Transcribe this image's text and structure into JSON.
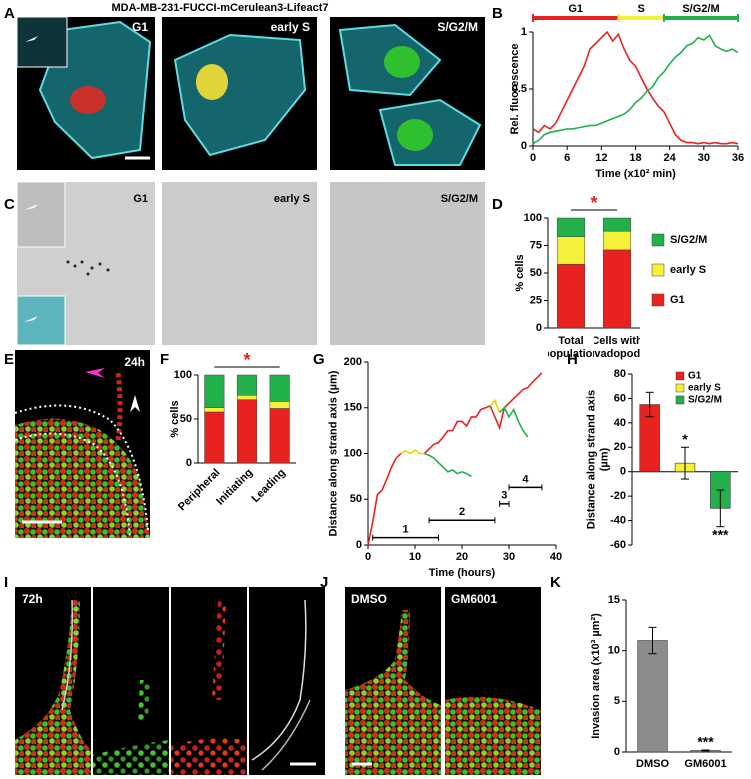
{
  "figure": {
    "A": {
      "letter": "A",
      "title": "MDA-MB-231-FUCCI-mCerulean3-Lifeact7",
      "labels": [
        "G1",
        "early S",
        "S/G2/M"
      ]
    },
    "C": {
      "letter": "C",
      "labels": [
        "G1",
        "early S",
        "S/G2/M"
      ]
    },
    "E": {
      "letter": "E",
      "label": "24h"
    },
    "I": {
      "letter": "I",
      "label": "72h"
    },
    "J": {
      "letter": "J",
      "labels": [
        "DMSO",
        "GM6001"
      ]
    }
  },
  "chart_data": [
    {
      "panel": "B",
      "type": "line",
      "x": [
        0,
        1,
        2,
        3,
        4,
        5,
        6,
        7,
        8,
        9,
        10,
        11,
        12,
        13,
        14,
        15,
        16,
        17,
        18,
        19,
        20,
        21,
        22,
        23,
        24,
        25,
        26,
        27,
        28,
        29,
        30,
        31,
        32,
        33,
        34,
        35,
        36
      ],
      "series": [
        {
          "color": "#e8231f",
          "values": [
            0.15,
            0.12,
            0.18,
            0.15,
            0.2,
            0.3,
            0.4,
            0.5,
            0.6,
            0.7,
            0.85,
            0.9,
            0.95,
            1.0,
            0.92,
            0.98,
            0.85,
            0.75,
            0.7,
            0.6,
            0.5,
            0.42,
            0.35,
            0.3,
            0.2,
            0.1,
            0.05,
            0.03,
            0.03,
            0.02,
            0.03,
            0.02,
            0.03,
            0.02,
            0.02,
            0.03,
            0.02
          ]
        },
        {
          "color": "#22b04b",
          "values": [
            0.02,
            0.05,
            0.1,
            0.12,
            0.13,
            0.14,
            0.15,
            0.15,
            0.16,
            0.17,
            0.18,
            0.18,
            0.2,
            0.22,
            0.24,
            0.26,
            0.28,
            0.32,
            0.38,
            0.42,
            0.48,
            0.52,
            0.6,
            0.65,
            0.72,
            0.78,
            0.82,
            0.88,
            0.9,
            0.95,
            0.93,
            0.97,
            0.88,
            0.85,
            0.83,
            0.85,
            0.82
          ]
        }
      ],
      "xlim": [
        0,
        36
      ],
      "ylim": [
        0,
        1
      ],
      "xticks": [
        0,
        6,
        12,
        18,
        24,
        30,
        36
      ],
      "yticks": [
        0,
        0.5,
        1
      ],
      "xlabel": "Time (x10² min)",
      "ylabel": "Rel. fluorescence",
      "phases": [
        {
          "name": "G1",
          "start": 0,
          "end": 15,
          "color": "#e8231f"
        },
        {
          "name": "S",
          "start": 15,
          "end": 23,
          "color": "#f5f03a"
        },
        {
          "name": "S/G2/M",
          "start": 23,
          "end": 36,
          "color": "#22b04b"
        }
      ]
    },
    {
      "panel": "D",
      "type": "stacked_bar",
      "categories": [
        "Total population",
        "Cells with invadopodia"
      ],
      "series": [
        {
          "name": "G1",
          "color": "#e8231f",
          "values": [
            58,
            71
          ]
        },
        {
          "name": "early S",
          "color": "#f5f03a",
          "values": [
            25,
            17
          ]
        },
        {
          "name": "S/G2/M",
          "color": "#22b04b",
          "values": [
            17,
            12
          ]
        }
      ],
      "ylim": [
        0,
        100
      ],
      "yticks": [
        0,
        25,
        50,
        75,
        100
      ],
      "ylabel": "% cells",
      "significance": "*"
    },
    {
      "panel": "F",
      "type": "stacked_bar",
      "categories": [
        "Peripheral",
        "Initiating",
        "Leading"
      ],
      "series": [
        {
          "color": "#e8231f",
          "values": [
            58,
            72,
            62
          ]
        },
        {
          "color": "#f5f03a",
          "values": [
            5,
            5,
            8
          ]
        },
        {
          "color": "#22b04b",
          "values": [
            37,
            23,
            30
          ]
        }
      ],
      "ylim": [
        0,
        100
      ],
      "yticks": [
        0,
        50,
        100
      ],
      "ylabel": "% cells",
      "significance": "*"
    },
    {
      "panel": "G",
      "type": "line",
      "x": [
        0,
        1,
        2,
        3,
        4,
        5,
        6,
        7,
        8,
        9,
        10,
        11,
        12,
        13,
        14,
        15,
        16,
        17,
        18,
        19,
        20,
        21,
        22,
        23,
        24,
        25,
        26,
        27,
        28,
        29,
        30,
        31,
        32,
        33,
        34,
        35,
        36,
        37
      ],
      "series": [
        {
          "color": "#e8231f",
          "values": [
            0,
            25,
            55,
            60,
            72,
            85,
            95,
            100,
            null,
            null,
            null,
            null,
            100,
            105,
            110,
            112,
            118,
            125,
            125,
            135,
            135,
            130,
            140,
            140,
            148,
            150,
            152,
            140,
            128,
            150,
            155,
            160,
            165,
            170,
            172,
            178,
            183,
            188
          ]
        },
        {
          "color": "#e6d800",
          "values": [
            null,
            null,
            null,
            null,
            null,
            null,
            null,
            100,
            103,
            100,
            104,
            100,
            100,
            null,
            null,
            null,
            null,
            null,
            null,
            null,
            null,
            null,
            null,
            null,
            null,
            null,
            152,
            158,
            145,
            null,
            null,
            null,
            null,
            null,
            null,
            null,
            null,
            null
          ]
        },
        {
          "color": "#22b04b",
          "values": [
            null,
            null,
            null,
            null,
            null,
            null,
            null,
            null,
            null,
            null,
            null,
            null,
            100,
            98,
            95,
            90,
            85,
            80,
            82,
            78,
            80,
            78,
            75,
            null,
            null,
            null,
            null,
            null,
            145,
            150,
            140,
            148,
            135,
            125,
            118,
            null,
            null,
            null
          ]
        }
      ],
      "xlim": [
        0,
        40
      ],
      "ylim": [
        0,
        200
      ],
      "xticks": [
        0,
        10,
        20,
        30,
        40
      ],
      "yticks": [
        0,
        50,
        100,
        150,
        200
      ],
      "xlabel": "Time (hours)",
      "ylabel": "Distance along strand axis (µm)",
      "intervals": [
        {
          "label": "1",
          "start": 1,
          "end": 15,
          "y": 8
        },
        {
          "label": "2",
          "start": 13,
          "end": 27,
          "y": 27
        },
        {
          "label": "3",
          "start": 28,
          "end": 30,
          "y": 45
        },
        {
          "label": "4",
          "start": 30,
          "end": 37,
          "y": 63
        }
      ]
    },
    {
      "panel": "H",
      "type": "bar",
      "series": [
        {
          "name": "G1",
          "color": "#e8231f",
          "values": [
            55
          ],
          "errors": [
            10
          ]
        },
        {
          "name": "early S",
          "color": "#f5f03a",
          "values": [
            7
          ],
          "errors": [
            13
          ],
          "significance": "*"
        },
        {
          "name": "S/G2/M",
          "color": "#22b04b",
          "values": [
            -30
          ],
          "errors": [
            15
          ],
          "significance": "***"
        }
      ],
      "ylim": [
        -60,
        80
      ],
      "yticks": [
        -60,
        -40,
        -20,
        0,
        20,
        40,
        60,
        80
      ],
      "ylabel": "Distance along strand axis (µm)"
    },
    {
      "panel": "K",
      "type": "bar",
      "categories": [
        "DMSO",
        "GM6001"
      ],
      "values": [
        11,
        0.15
      ],
      "errors": [
        1.3,
        0.05
      ],
      "color": "#8c8c8c",
      "significance": [
        null,
        "***"
      ],
      "ylim": [
        0,
        15
      ],
      "yticks": [
        0,
        5,
        10,
        15
      ],
      "ylabel": "Invasion area (x10³ µm²)"
    }
  ]
}
